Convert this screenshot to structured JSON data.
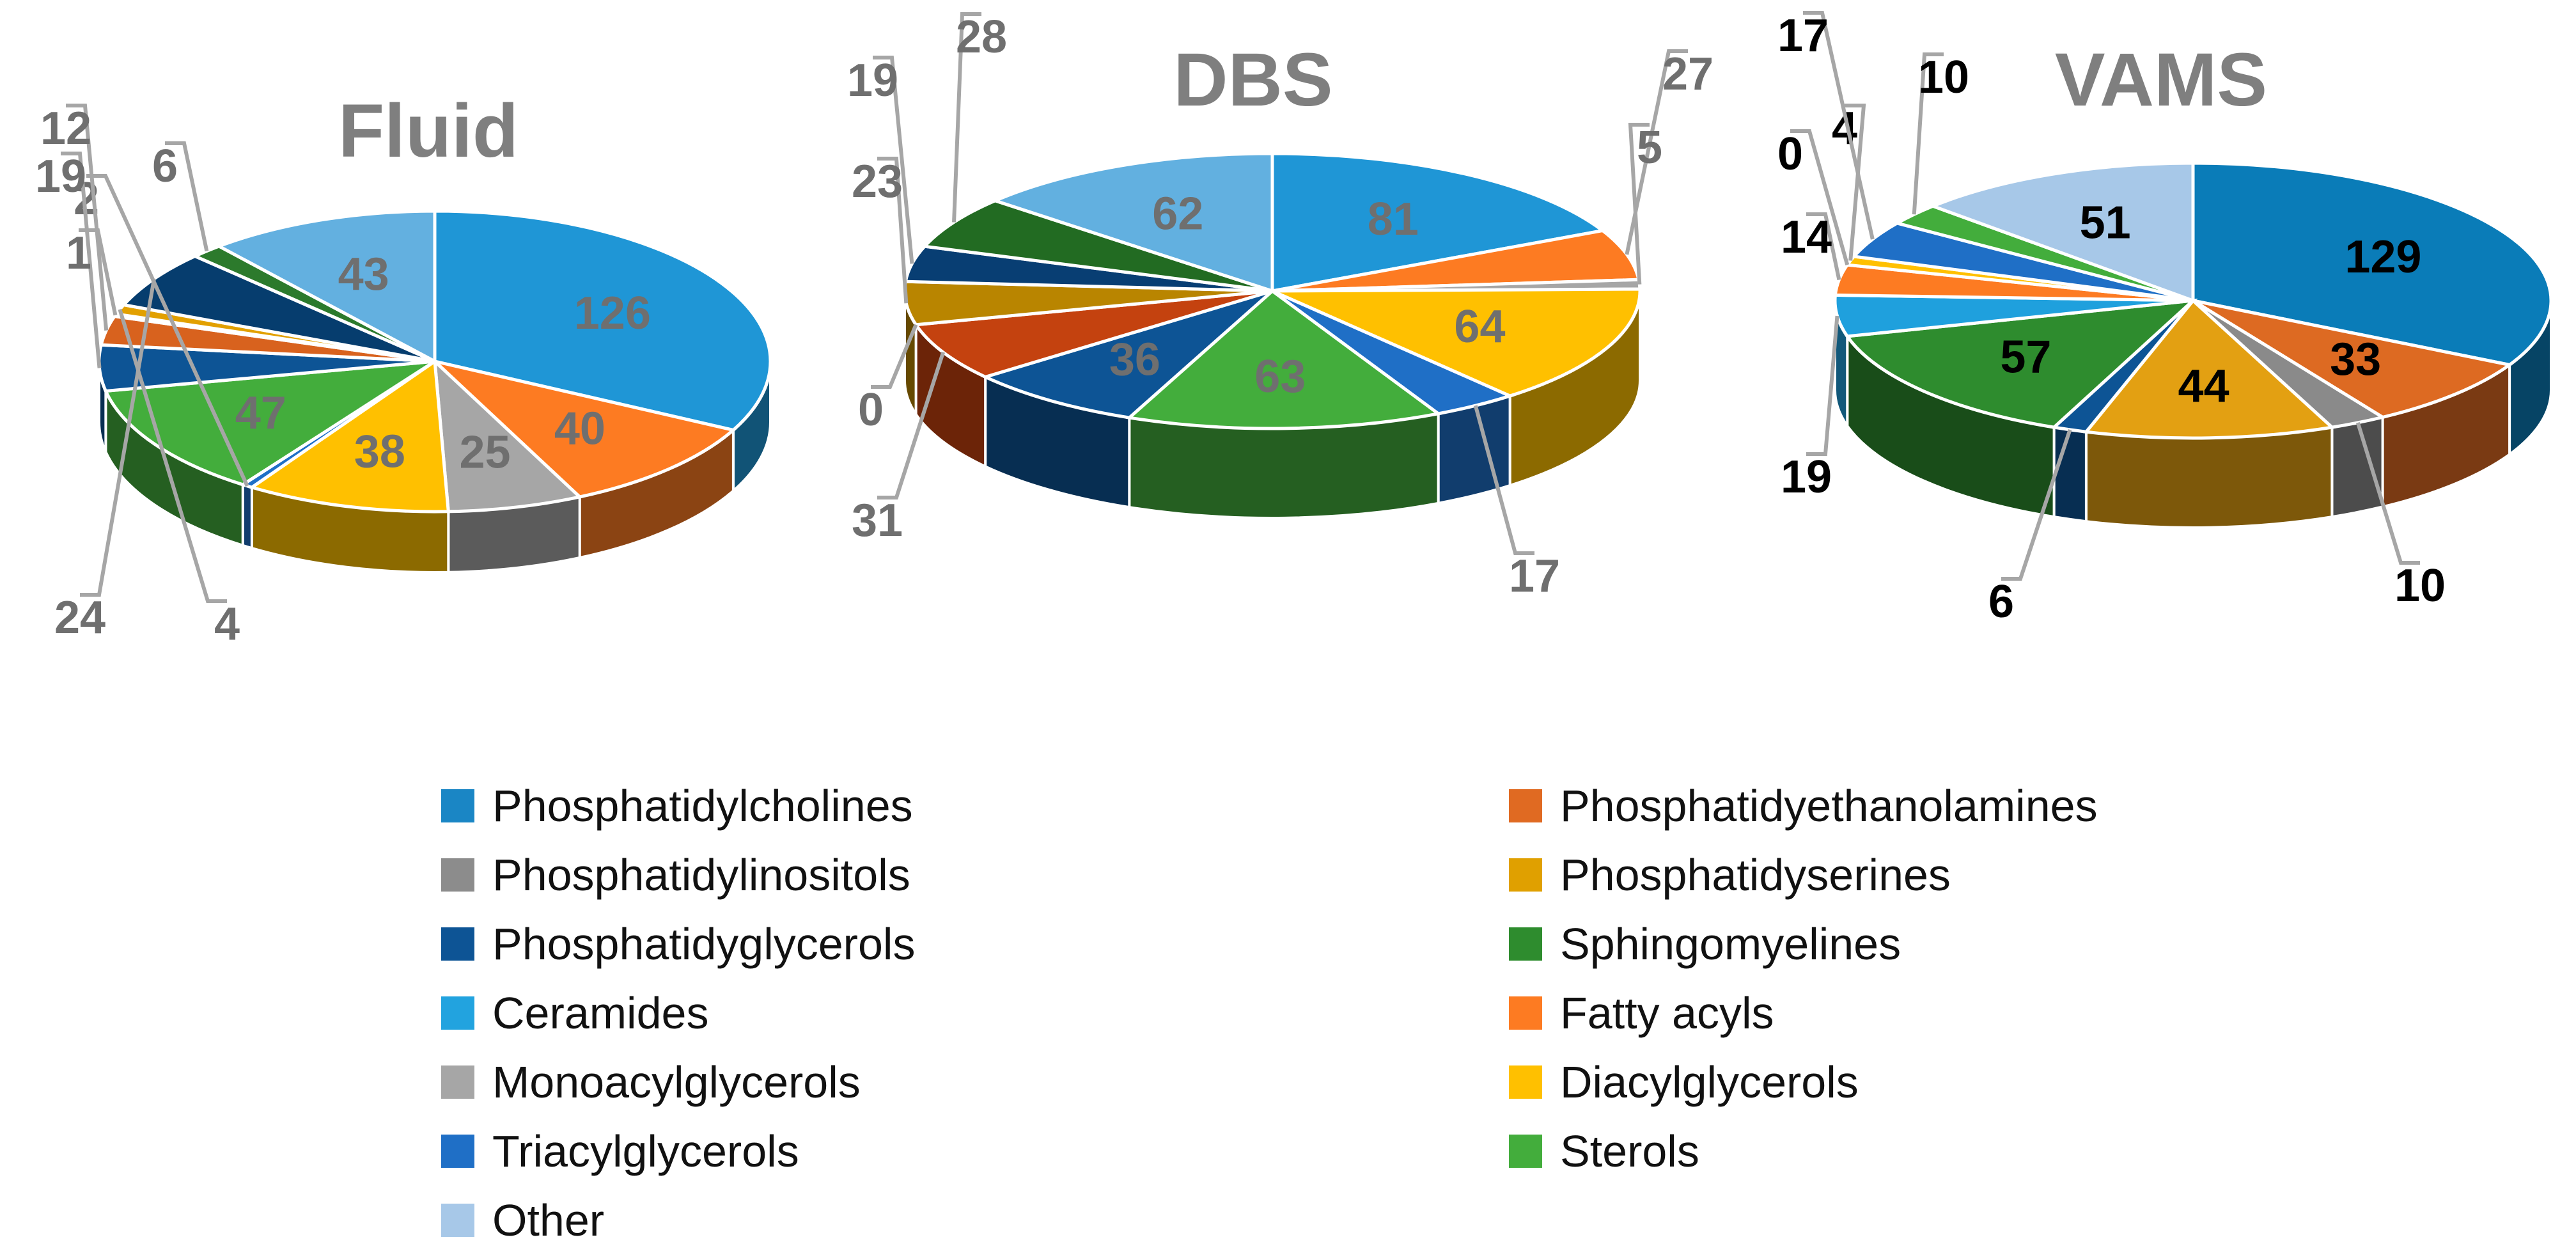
{
  "chart_data": [
    {
      "type": "pie",
      "title": "Fluid",
      "categories": [
        "Phosphatidylcholines",
        "Phosphatidyethanolamines",
        "Phosphatidylinositols",
        "Phosphatidyserines",
        "Phosphatidyglycerols",
        "Sphingomyelines",
        "Ceramides",
        "Fatty acyls",
        "Monoacylglycerols",
        "Diacylglycerols",
        "Triacylglycerols",
        "Sterols",
        "Other"
      ],
      "slices": [
        {
          "category": "Phosphatidylcholines",
          "value": 126,
          "color": "#1f96d6",
          "label": "126",
          "label_style": "inside"
        },
        {
          "category": "Fatty acyls",
          "value": 40,
          "color": "#fd7b22",
          "label": "40",
          "label_style": "inside"
        },
        {
          "category": "Monoacylglycerols",
          "value": 25,
          "color": "#a6a6a6",
          "label": "25",
          "label_style": "inside"
        },
        {
          "category": "Diacylglycerols",
          "value": 38,
          "color": "#ffc000",
          "label": "38",
          "label_style": "inside"
        },
        {
          "category": "Triacylglycerols",
          "value": 2,
          "color": "#1f6fc6",
          "label": "2",
          "label_style": "outside"
        },
        {
          "category": "Sterols",
          "value": 47,
          "color": "#43ad3c",
          "label": "47",
          "label_style": "inside"
        },
        {
          "category": "Phosphatidyglycerols",
          "value": 19,
          "color": "#0d5495",
          "label": "19",
          "label_style": "outside"
        },
        {
          "category": "Phosphatidyethanolamines",
          "value": 12,
          "color": "#d8621e",
          "label": "12",
          "label_style": "outside"
        },
        {
          "category": "Phosphatidylinositols",
          "value": 1,
          "color": "#8a8a8a",
          "label": "1",
          "label_style": "outside"
        },
        {
          "category": "Phosphatidyserines",
          "value": 4,
          "color": "#e2a000",
          "label": "4",
          "label_style": "outside"
        },
        {
          "category": "Phosphatidyglycerols",
          "value": 24,
          "color": "#063d6e",
          "label": "24",
          "label_style": "outside"
        },
        {
          "category": "Sphingomyelines",
          "value": 6,
          "color": "#2c7a2c",
          "label": "6",
          "label_style": "outside"
        },
        {
          "category": "Other",
          "value": 43,
          "color": "#63b0e0",
          "label": "43",
          "label_style": "inside"
        }
      ]
    },
    {
      "type": "pie",
      "title": "DBS",
      "categories": [
        "Phosphatidylcholines",
        "Phosphatidyethanolamines",
        "Phosphatidylinositols",
        "Phosphatidyserines",
        "Phosphatidyglycerols",
        "Sphingomyelines",
        "Ceramides",
        "Fatty acyls",
        "Monoacylglycerols",
        "Diacylglycerols",
        "Triacylglycerols",
        "Sterols",
        "Other"
      ],
      "slices": [
        {
          "category": "Phosphatidylcholines",
          "value": 81,
          "color": "#1f96d6",
          "label": "81",
          "label_style": "inside"
        },
        {
          "category": "Fatty acyls",
          "value": 27,
          "color": "#fd7b22",
          "label": "27",
          "label_style": "outside"
        },
        {
          "category": "Monoacylglycerols",
          "value": 5,
          "color": "#a6a6a6",
          "label": "5",
          "label_style": "outside"
        },
        {
          "category": "Diacylglycerols",
          "value": 64,
          "color": "#ffc000",
          "label": "64",
          "label_style": "inside"
        },
        {
          "category": "Triacylglycerols",
          "value": 17,
          "color": "#1f6fc6",
          "label": "17",
          "label_style": "outside"
        },
        {
          "category": "Sterols",
          "value": 63,
          "color": "#43ad3c",
          "label": "63",
          "label_style": "inside"
        },
        {
          "category": "Phosphatidyglycerols",
          "value": 36,
          "color": "#0d5495",
          "label": "36",
          "label_style": "inside"
        },
        {
          "category": "Phosphatidyethanolamines",
          "value": 31,
          "color": "#c4420f",
          "label": "31",
          "label_style": "outside"
        },
        {
          "category": "Phosphatidylinositols",
          "value": 0,
          "color": "#8a8a8a",
          "label": "0",
          "label_style": "outside"
        },
        {
          "category": "Phosphatidyserines",
          "value": 23,
          "color": "#b98500",
          "label": "23",
          "label_style": "outside"
        },
        {
          "category": "Phosphatidyglycerols",
          "value": 19,
          "color": "#083e73",
          "label": "19",
          "label_style": "outside"
        },
        {
          "category": "Sphingomyelines",
          "value": 28,
          "color": "#226b22",
          "label": "28",
          "label_style": "outside"
        },
        {
          "category": "Other",
          "value": 62,
          "color": "#62b0e0",
          "label": "62",
          "label_style": "inside"
        }
      ]
    },
    {
      "type": "pie",
      "title": "VAMS",
      "categories": [
        "Phosphatidylcholines",
        "Phosphatidyethanolamines",
        "Phosphatidylinositols",
        "Phosphatidyserines",
        "Phosphatidyglycerols",
        "Sphingomyelines",
        "Ceramides",
        "Fatty acyls",
        "Monoacylglycerols",
        "Diacylglycerols",
        "Triacylglycerols",
        "Sterols",
        "Other"
      ],
      "slices": [
        {
          "category": "Phosphatidylcholines",
          "value": 129,
          "color": "#0a7cb8",
          "label": "129",
          "label_style": "inside"
        },
        {
          "category": "Phosphatidyethanolamines",
          "value": 33,
          "color": "#dd6a22",
          "label": "33",
          "label_style": "inside"
        },
        {
          "category": "Phosphatidylinositols",
          "value": 10,
          "color": "#8a8a8a",
          "label": "10",
          "label_style": "outside"
        },
        {
          "category": "Phosphatidyserines",
          "value": 44,
          "color": "#e3a012",
          "label": "44",
          "label_style": "inside"
        },
        {
          "category": "Phosphatidyglycerols",
          "value": 6,
          "color": "#0d5495",
          "label": "6",
          "label_style": "outside"
        },
        {
          "category": "Sphingomyelines",
          "value": 57,
          "color": "#2e8c2e",
          "label": "57",
          "label_style": "inside"
        },
        {
          "category": "Ceramides",
          "value": 19,
          "color": "#1fa0dd",
          "label": "19",
          "label_style": "outside"
        },
        {
          "category": "Fatty acyls",
          "value": 14,
          "color": "#fd7b22",
          "label": "14",
          "label_style": "outside"
        },
        {
          "category": "Monoacylglycerols",
          "value": 0,
          "color": "#a6a6a6",
          "label": "0",
          "label_style": "outside"
        },
        {
          "category": "Diacylglycerols",
          "value": 4,
          "color": "#ffc000",
          "label": "4",
          "label_style": "outside"
        },
        {
          "category": "Triacylglycerols",
          "value": 17,
          "color": "#1f6fc6",
          "label": "17",
          "label_style": "outside"
        },
        {
          "category": "Sterols",
          "value": 10,
          "color": "#43ad3c",
          "label": "10",
          "label_style": "outside"
        },
        {
          "category": "Other",
          "value": 51,
          "color": "#a7c8e8",
          "label": "51",
          "label_style": "inside"
        }
      ]
    }
  ],
  "legend": {
    "placement": "bottom-center",
    "items": [
      {
        "label": "Phosphatidylcholines",
        "color": "#1a86c5"
      },
      {
        "label": "Phosphatidyethanolamines",
        "color": "#e06a22"
      },
      {
        "label": "Phosphatidylinositols",
        "color": "#8c8c8c"
      },
      {
        "label": "Phosphatidyserines",
        "color": "#e0a000"
      },
      {
        "label": "Phosphatidyglycerols",
        "color": "#0d5495"
      },
      {
        "label": "Sphingomyelines",
        "color": "#2e8c2e"
      },
      {
        "label": "Ceramides",
        "color": "#22a3df"
      },
      {
        "label": "Fatty acyls",
        "color": "#fd7b22"
      },
      {
        "label": "Monoacylglycerols",
        "color": "#a6a6a6"
      },
      {
        "label": "Diacylglycerols",
        "color": "#ffc000"
      },
      {
        "label": "Triacylglycerols",
        "color": "#1f6fc6"
      },
      {
        "label": "Sterols",
        "color": "#43ad3c"
      },
      {
        "label": "Other",
        "color": "#a7c8e8"
      }
    ]
  }
}
